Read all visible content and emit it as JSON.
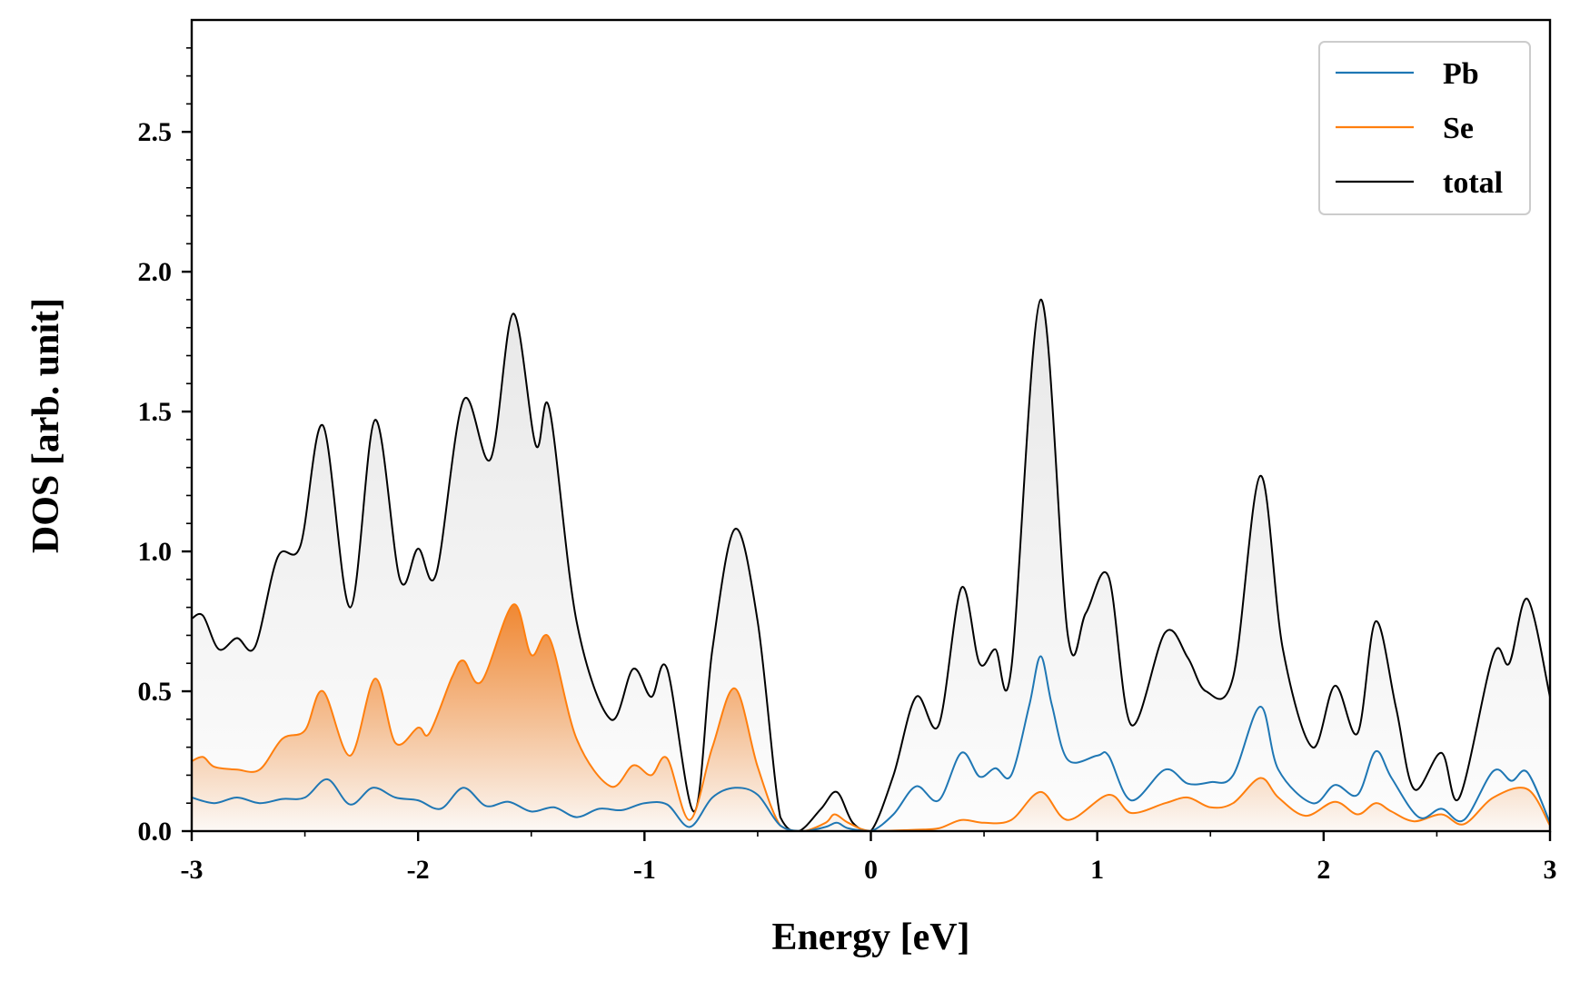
{
  "chart_data": {
    "type": "line",
    "xlabel": "Energy [eV]",
    "ylabel": "DOS [arb. unit]",
    "xlim": [
      -3,
      3
    ],
    "ylim": [
      0,
      2.9
    ],
    "xticks": [
      -3,
      -2,
      -1,
      0,
      1,
      2,
      3
    ],
    "xtick_labels": [
      "-3",
      "-2",
      "-1",
      "0",
      "1",
      "2",
      "3"
    ],
    "yticks": [
      0,
      0.5,
      1.0,
      1.5,
      2.0,
      2.5
    ],
    "ytick_labels": [
      "0.0",
      "0.5",
      "1.0",
      "1.5",
      "2.0",
      "2.5"
    ],
    "grid": false,
    "legend_position": "top-right",
    "series": [
      {
        "name": "Pb",
        "color": "#1f77b4",
        "filled": false,
        "points": [
          [
            -3.0,
            0.12
          ],
          [
            -2.9,
            0.1
          ],
          [
            -2.8,
            0.12
          ],
          [
            -2.7,
            0.1
          ],
          [
            -2.6,
            0.115
          ],
          [
            -2.5,
            0.12
          ],
          [
            -2.4,
            0.185
          ],
          [
            -2.3,
            0.095
          ],
          [
            -2.2,
            0.155
          ],
          [
            -2.1,
            0.12
          ],
          [
            -2.0,
            0.11
          ],
          [
            -1.9,
            0.08
          ],
          [
            -1.8,
            0.155
          ],
          [
            -1.7,
            0.09
          ],
          [
            -1.6,
            0.105
          ],
          [
            -1.5,
            0.07
          ],
          [
            -1.4,
            0.085
          ],
          [
            -1.3,
            0.05
          ],
          [
            -1.2,
            0.08
          ],
          [
            -1.1,
            0.075
          ],
          [
            -1.0,
            0.1
          ],
          [
            -0.9,
            0.095
          ],
          [
            -0.8,
            0.015
          ],
          [
            -0.7,
            0.12
          ],
          [
            -0.6,
            0.155
          ],
          [
            -0.5,
            0.13
          ],
          [
            -0.4,
            0.02
          ],
          [
            -0.3,
            0.0
          ],
          [
            -0.2,
            0.015
          ],
          [
            -0.15,
            0.03
          ],
          [
            -0.1,
            0.01
          ],
          [
            0.0,
            0.0
          ],
          [
            0.1,
            0.06
          ],
          [
            0.2,
            0.16
          ],
          [
            0.3,
            0.11
          ],
          [
            0.4,
            0.28
          ],
          [
            0.48,
            0.195
          ],
          [
            0.55,
            0.225
          ],
          [
            0.62,
            0.2
          ],
          [
            0.7,
            0.45
          ],
          [
            0.75,
            0.625
          ],
          [
            0.8,
            0.45
          ],
          [
            0.87,
            0.255
          ],
          [
            1.0,
            0.27
          ],
          [
            1.05,
            0.27
          ],
          [
            1.15,
            0.11
          ],
          [
            1.3,
            0.22
          ],
          [
            1.4,
            0.17
          ],
          [
            1.5,
            0.175
          ],
          [
            1.6,
            0.2
          ],
          [
            1.72,
            0.445
          ],
          [
            1.8,
            0.22
          ],
          [
            1.95,
            0.1
          ],
          [
            2.05,
            0.165
          ],
          [
            2.15,
            0.13
          ],
          [
            2.23,
            0.285
          ],
          [
            2.3,
            0.19
          ],
          [
            2.42,
            0.05
          ],
          [
            2.52,
            0.08
          ],
          [
            2.62,
            0.04
          ],
          [
            2.75,
            0.215
          ],
          [
            2.83,
            0.18
          ],
          [
            2.9,
            0.21
          ],
          [
            3.0,
            0.03
          ]
        ]
      },
      {
        "name": "Se",
        "color": "#ff7f0e",
        "filled": true,
        "points": [
          [
            -3.0,
            0.25
          ],
          [
            -2.95,
            0.265
          ],
          [
            -2.9,
            0.23
          ],
          [
            -2.8,
            0.22
          ],
          [
            -2.7,
            0.22
          ],
          [
            -2.6,
            0.33
          ],
          [
            -2.5,
            0.36
          ],
          [
            -2.42,
            0.5
          ],
          [
            -2.3,
            0.27
          ],
          [
            -2.19,
            0.545
          ],
          [
            -2.1,
            0.315
          ],
          [
            -2.0,
            0.37
          ],
          [
            -1.95,
            0.35
          ],
          [
            -1.85,
            0.55
          ],
          [
            -1.8,
            0.61
          ],
          [
            -1.72,
            0.535
          ],
          [
            -1.58,
            0.81
          ],
          [
            -1.5,
            0.63
          ],
          [
            -1.42,
            0.69
          ],
          [
            -1.3,
            0.33
          ],
          [
            -1.15,
            0.16
          ],
          [
            -1.05,
            0.235
          ],
          [
            -0.97,
            0.2
          ],
          [
            -0.9,
            0.26
          ],
          [
            -0.8,
            0.04
          ],
          [
            -0.7,
            0.3
          ],
          [
            -0.6,
            0.51
          ],
          [
            -0.5,
            0.23
          ],
          [
            -0.4,
            0.02
          ],
          [
            -0.3,
            0.0
          ],
          [
            -0.2,
            0.03
          ],
          [
            -0.16,
            0.06
          ],
          [
            -0.1,
            0.03
          ],
          [
            0.0,
            0.0
          ],
          [
            0.2,
            0.005
          ],
          [
            0.3,
            0.01
          ],
          [
            0.4,
            0.04
          ],
          [
            0.5,
            0.03
          ],
          [
            0.62,
            0.04
          ],
          [
            0.75,
            0.14
          ],
          [
            0.87,
            0.04
          ],
          [
            1.05,
            0.13
          ],
          [
            1.15,
            0.065
          ],
          [
            1.3,
            0.1
          ],
          [
            1.4,
            0.12
          ],
          [
            1.5,
            0.085
          ],
          [
            1.6,
            0.1
          ],
          [
            1.72,
            0.19
          ],
          [
            1.8,
            0.12
          ],
          [
            1.92,
            0.055
          ],
          [
            2.05,
            0.105
          ],
          [
            2.15,
            0.06
          ],
          [
            2.23,
            0.1
          ],
          [
            2.3,
            0.07
          ],
          [
            2.4,
            0.035
          ],
          [
            2.52,
            0.06
          ],
          [
            2.62,
            0.025
          ],
          [
            2.75,
            0.12
          ],
          [
            2.9,
            0.15
          ],
          [
            3.0,
            0.02
          ]
        ]
      },
      {
        "name": "total",
        "color": "#000000",
        "filled": true,
        "points": [
          [
            -3.0,
            0.76
          ],
          [
            -2.95,
            0.77
          ],
          [
            -2.88,
            0.65
          ],
          [
            -2.8,
            0.69
          ],
          [
            -2.72,
            0.66
          ],
          [
            -2.62,
            0.98
          ],
          [
            -2.52,
            1.02
          ],
          [
            -2.42,
            1.45
          ],
          [
            -2.3,
            0.8
          ],
          [
            -2.19,
            1.47
          ],
          [
            -2.08,
            0.9
          ],
          [
            -2.0,
            1.01
          ],
          [
            -1.92,
            0.92
          ],
          [
            -1.8,
            1.54
          ],
          [
            -1.68,
            1.33
          ],
          [
            -1.58,
            1.85
          ],
          [
            -1.48,
            1.38
          ],
          [
            -1.42,
            1.51
          ],
          [
            -1.3,
            0.75
          ],
          [
            -1.15,
            0.4
          ],
          [
            -1.05,
            0.58
          ],
          [
            -0.97,
            0.48
          ],
          [
            -0.9,
            0.58
          ],
          [
            -0.78,
            0.07
          ],
          [
            -0.7,
            0.65
          ],
          [
            -0.6,
            1.08
          ],
          [
            -0.5,
            0.75
          ],
          [
            -0.4,
            0.05
          ],
          [
            -0.32,
            0.0
          ],
          [
            -0.22,
            0.08
          ],
          [
            -0.15,
            0.14
          ],
          [
            -0.08,
            0.03
          ],
          [
            0.0,
            0.0
          ],
          [
            0.1,
            0.2
          ],
          [
            0.2,
            0.48
          ],
          [
            0.3,
            0.38
          ],
          [
            0.4,
            0.87
          ],
          [
            0.48,
            0.6
          ],
          [
            0.55,
            0.65
          ],
          [
            0.62,
            0.58
          ],
          [
            0.75,
            1.9
          ],
          [
            0.87,
            0.7
          ],
          [
            0.95,
            0.78
          ],
          [
            1.05,
            0.91
          ],
          [
            1.15,
            0.38
          ],
          [
            1.3,
            0.71
          ],
          [
            1.4,
            0.62
          ],
          [
            1.48,
            0.5
          ],
          [
            1.6,
            0.55
          ],
          [
            1.72,
            1.27
          ],
          [
            1.82,
            0.65
          ],
          [
            1.95,
            0.3
          ],
          [
            2.05,
            0.52
          ],
          [
            2.15,
            0.35
          ],
          [
            2.23,
            0.75
          ],
          [
            2.32,
            0.44
          ],
          [
            2.4,
            0.15
          ],
          [
            2.52,
            0.28
          ],
          [
            2.6,
            0.12
          ],
          [
            2.75,
            0.63
          ],
          [
            2.82,
            0.6
          ],
          [
            2.9,
            0.83
          ],
          [
            3.0,
            0.48
          ]
        ]
      }
    ]
  }
}
